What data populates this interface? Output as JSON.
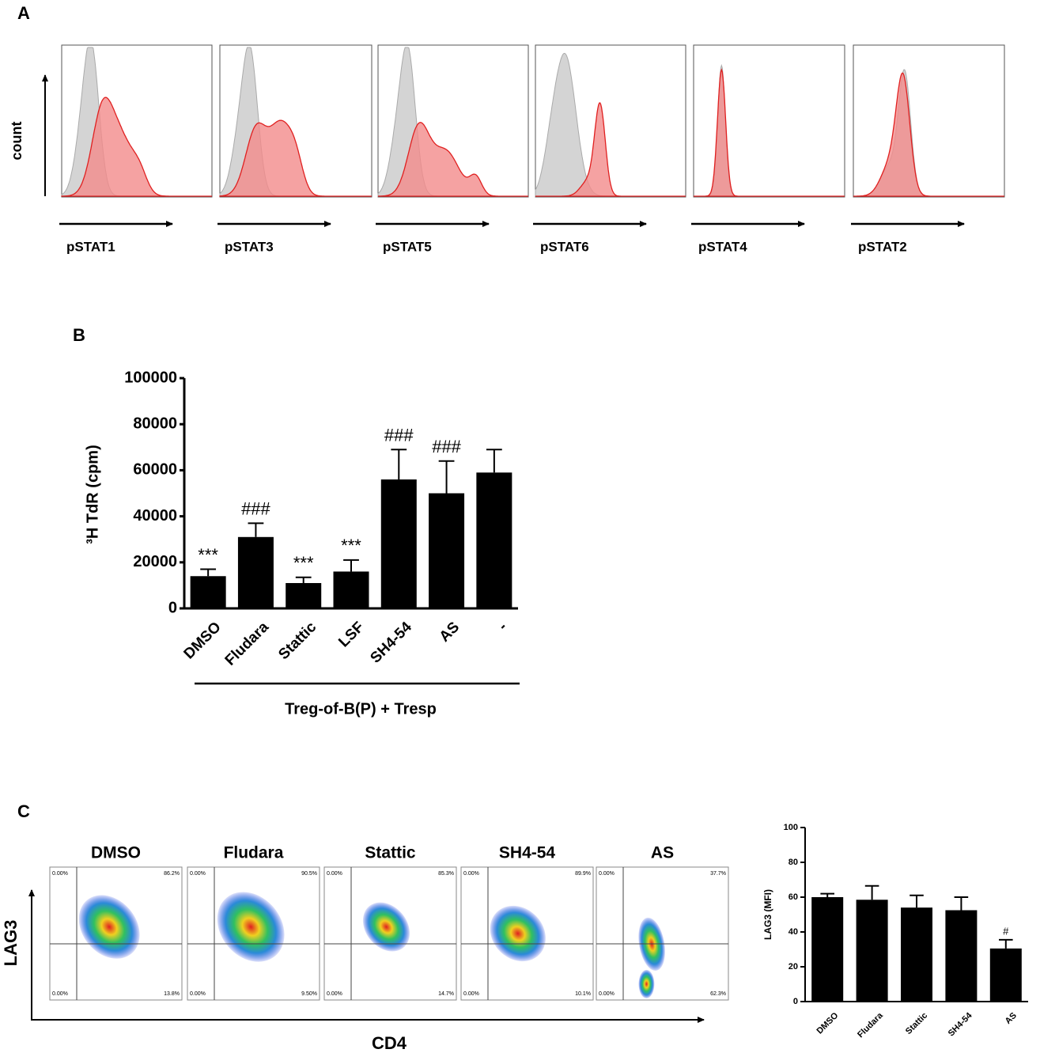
{
  "panel_labels": [
    "A",
    "B",
    "C"
  ],
  "histograms": {
    "y_label": "count",
    "control_color": "#d4d4d4",
    "treated_color": "#f28b8b",
    "panels": [
      {
        "label": "pSTAT1"
      },
      {
        "label": "pSTAT3"
      },
      {
        "label": "pSTAT5"
      },
      {
        "label": "pSTAT6"
      },
      {
        "label": "pSTAT4"
      },
      {
        "label": "pSTAT2"
      }
    ]
  },
  "chart_data": [
    {
      "type": "bar",
      "y_label": "³H TdR (cpm)",
      "group_label": "Treg-of-B(P) + Tresp",
      "categories": [
        "DMSO",
        "Fludara",
        "Stattic",
        "LSF",
        "SH4-54",
        "AS",
        "-"
      ],
      "values": [
        14000,
        31000,
        11000,
        16000,
        56000,
        50000,
        59000
      ],
      "errors": [
        3000,
        6000,
        2500,
        5000,
        13000,
        14000,
        10000
      ],
      "annotations": [
        "***",
        "###",
        "***",
        "***",
        "###",
        "###",
        null
      ],
      "color": "#000000",
      "ylim": [
        0,
        100000
      ],
      "yticks": [
        0,
        20000,
        40000,
        60000,
        80000,
        100000
      ]
    },
    {
      "type": "bar",
      "y_label": "LAG3 (MFI)",
      "categories": [
        "DMSO",
        "Fludara",
        "Stattic",
        "SH4-54",
        "AS"
      ],
      "values": [
        60,
        58.5,
        54,
        52.5,
        30.5
      ],
      "errors": [
        2,
        8,
        7,
        7.5,
        5
      ],
      "annotations": [
        null,
        null,
        null,
        null,
        "#"
      ],
      "color": "#000000",
      "ylim": [
        0,
        100
      ],
      "yticks": [
        0,
        20,
        40,
        60,
        80,
        100
      ]
    }
  ],
  "flow": {
    "x_label": "CD4",
    "y_label": "LAG3",
    "plots": [
      {
        "title": "DMSO",
        "quadrants": [
          "0.00%",
          "86.2%",
          "0.00%",
          "13.8%"
        ]
      },
      {
        "title": "Fludara",
        "quadrants": [
          "0.00%",
          "90.5%",
          "0.00%",
          "9.50%"
        ]
      },
      {
        "title": "Stattic",
        "quadrants": [
          "0.00%",
          "85.3%",
          "0.00%",
          "14.7%"
        ]
      },
      {
        "title": "SH4-54",
        "quadrants": [
          "0.00%",
          "89.9%",
          "0.00%",
          "10.1%"
        ]
      },
      {
        "title": "AS",
        "quadrants": [
          "0.00%",
          "37.7%",
          "0.00%",
          "62.3%"
        ]
      }
    ]
  }
}
